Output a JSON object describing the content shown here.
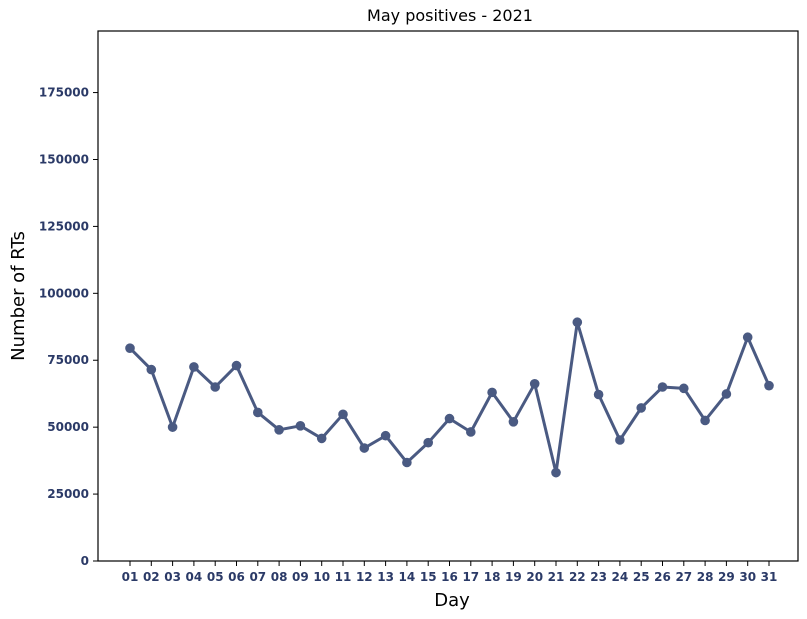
{
  "chart_data": {
    "type": "line",
    "title": "May positives - 2021",
    "xlabel": "Day",
    "ylabel": "Number of RTs",
    "categories": [
      "01",
      "02",
      "03",
      "04",
      "05",
      "06",
      "07",
      "08",
      "09",
      "10",
      "11",
      "12",
      "13",
      "14",
      "15",
      "16",
      "17",
      "18",
      "19",
      "20",
      "21",
      "22",
      "23",
      "24",
      "25",
      "26",
      "27",
      "28",
      "29",
      "30",
      "31"
    ],
    "values": [
      79500,
      71500,
      50000,
      72500,
      65000,
      73000,
      55500,
      49000,
      50500,
      45800,
      54800,
      42200,
      46800,
      36800,
      44200,
      53200,
      48200,
      63000,
      52000,
      66200,
      33000,
      89200,
      62200,
      45200,
      57200,
      65000,
      64500,
      52500,
      62400,
      83600,
      65500
    ],
    "yticks": [
      0,
      25000,
      50000,
      75000,
      100000,
      125000,
      150000,
      175000
    ],
    "ylim": [
      0,
      198000
    ],
    "grid": false,
    "colors": {
      "line": "#4a5a82",
      "tick_text": "#2b3a67",
      "axis": "#000000"
    }
  }
}
